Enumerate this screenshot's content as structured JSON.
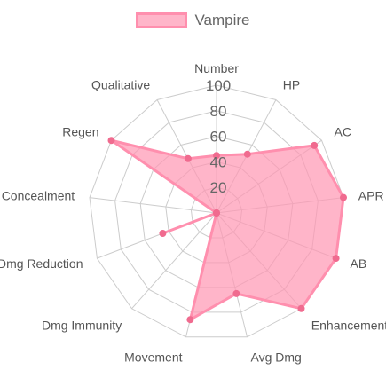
{
  "chart_data": {
    "type": "radar",
    "axes": [
      "Number",
      "HP",
      "AC",
      "APR",
      "AB",
      "Enhancement",
      "Avg Dmg",
      "Movement",
      "Dmg Immunity",
      "Dmg Reduction",
      "Concealment",
      "Regen",
      "Qualitative"
    ],
    "r_ticks": [
      "20",
      "40",
      "60",
      "80",
      "100"
    ],
    "r_range": [
      0,
      100
    ],
    "series": [
      {
        "name": "Vampire",
        "values": [
          45,
          52,
          93,
          100,
          100,
          100,
          65,
          86,
          0,
          45,
          0,
          100,
          48
        ]
      }
    ],
    "legend_position": "top",
    "colors": {
      "fill": "rgba(255,150,178,0.7)",
      "line": "#ff8fae",
      "point": "#f06b8f",
      "grid": "#cccccc",
      "label": "#555555",
      "tick": "#666666"
    }
  }
}
